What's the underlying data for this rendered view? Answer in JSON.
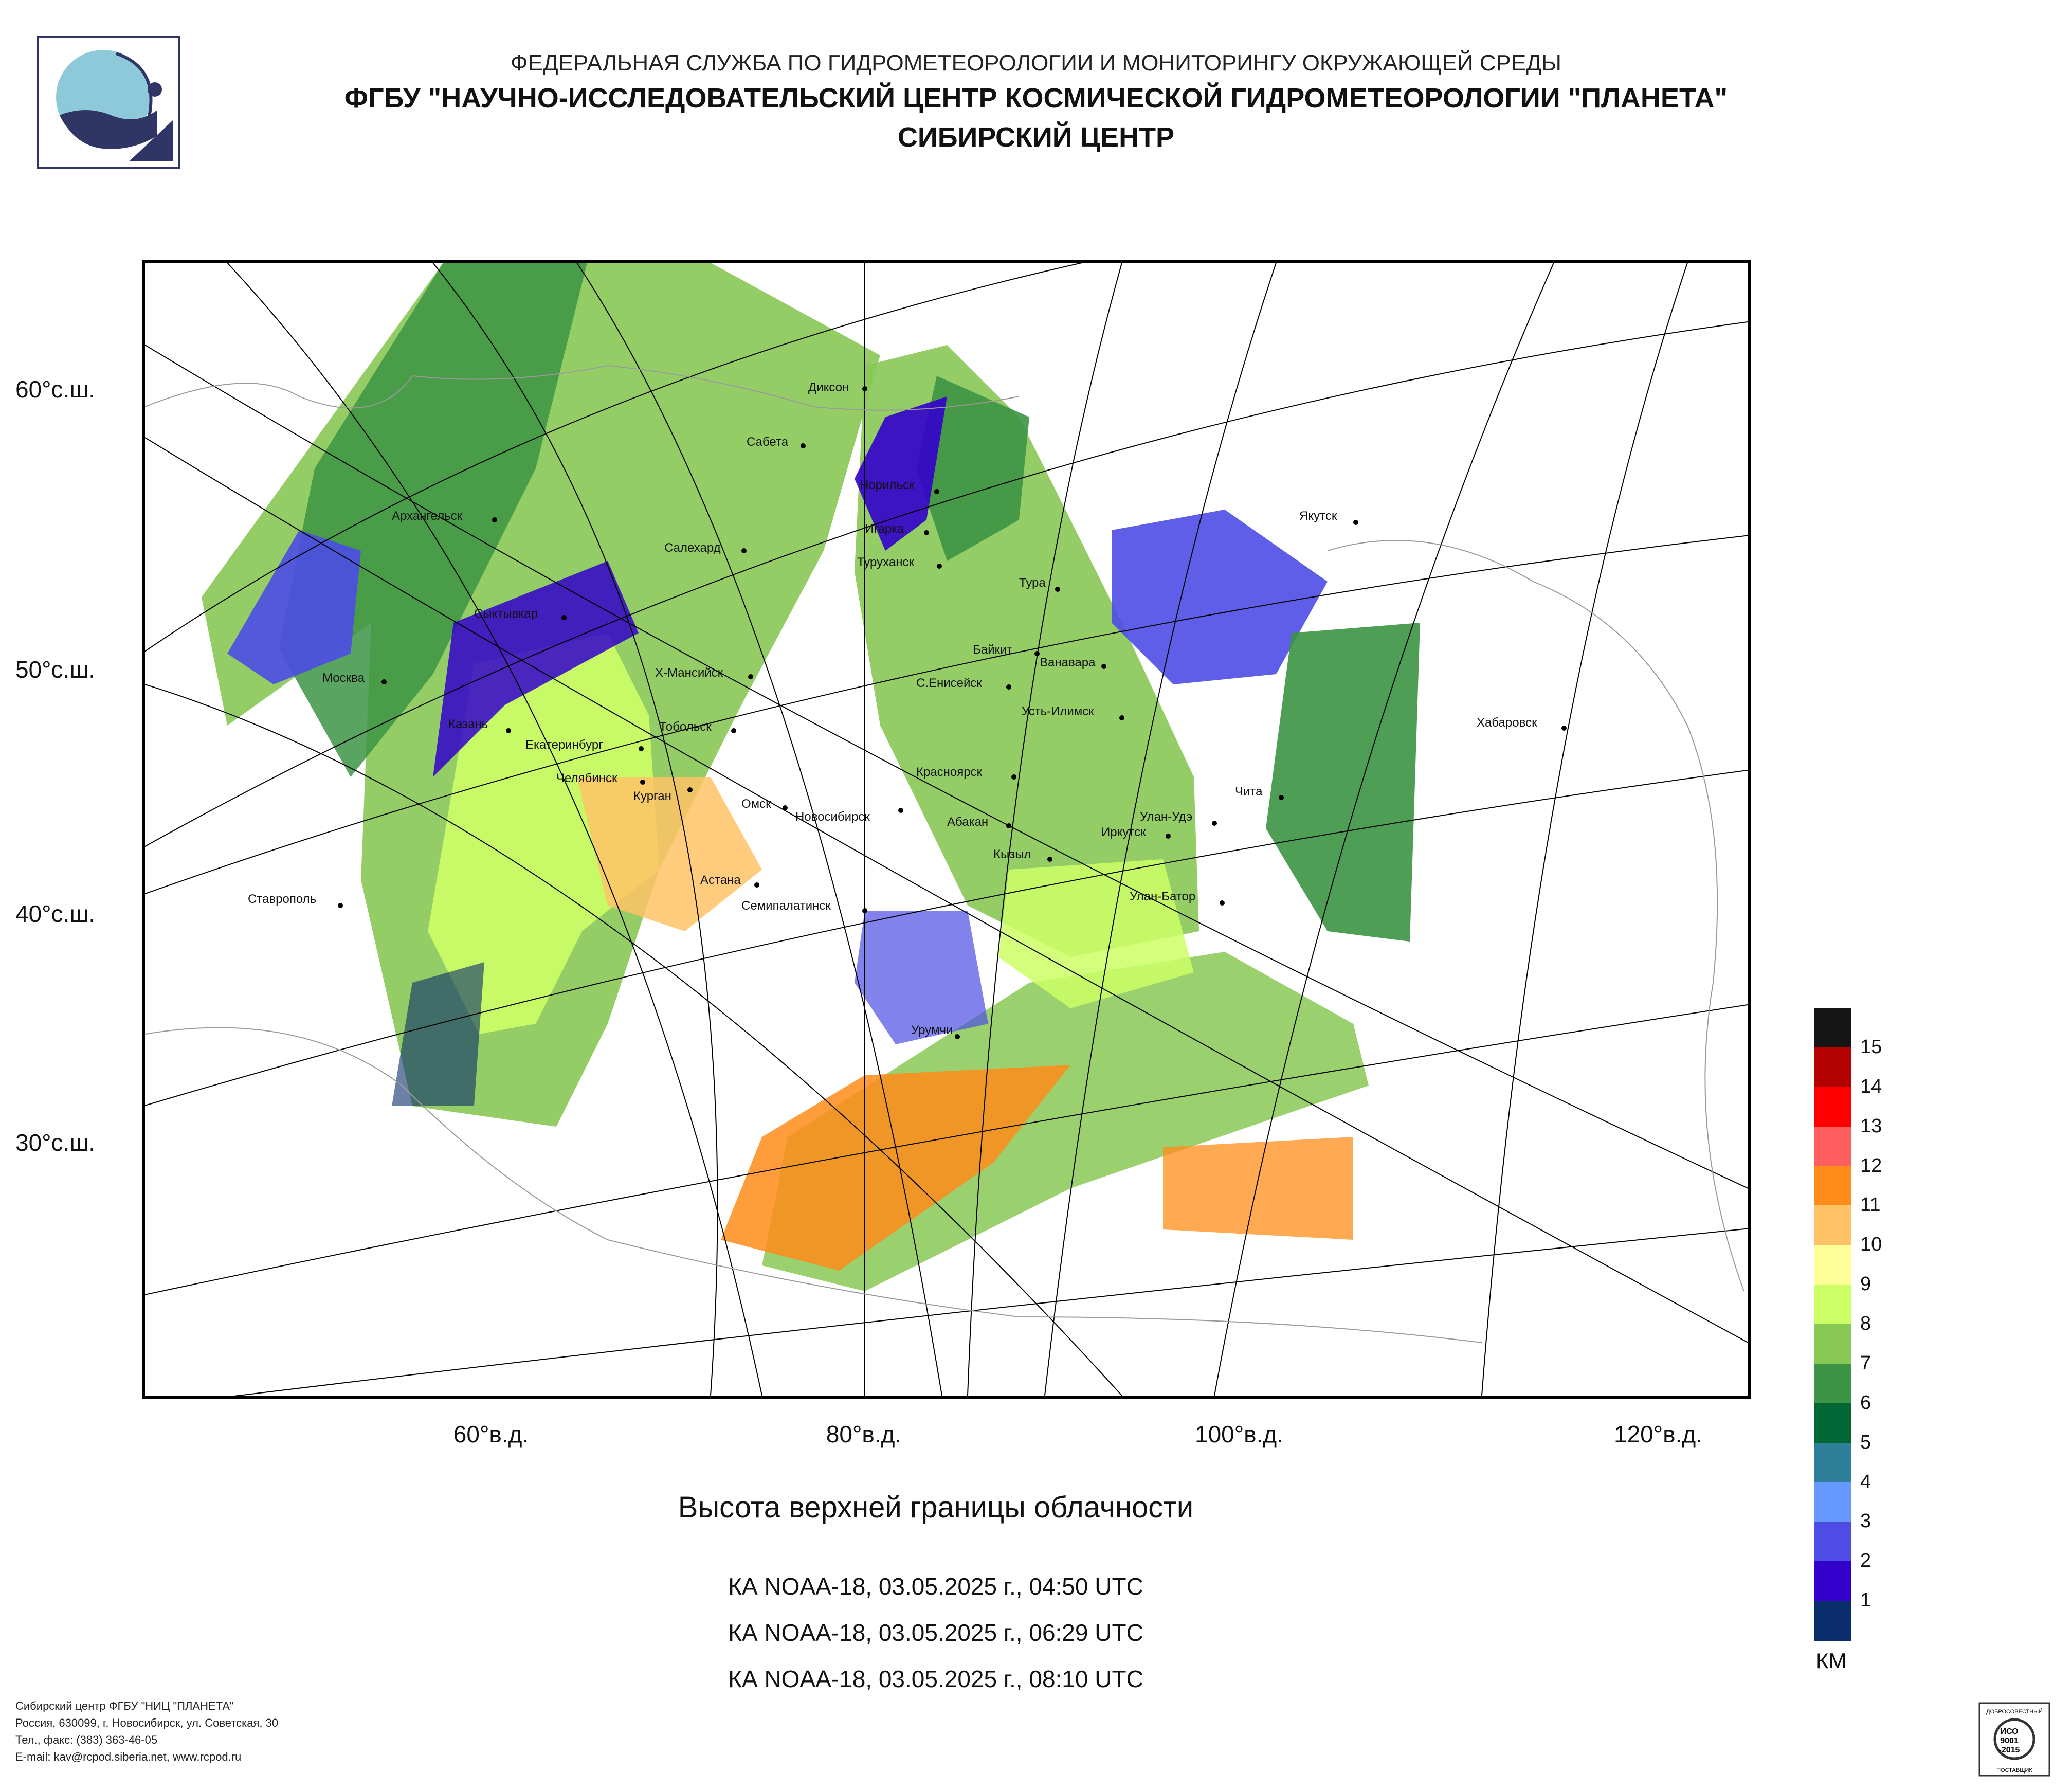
{
  "header": {
    "line1": "ФЕДЕРАЛЬНАЯ СЛУЖБА ПО ГИДРОМЕТЕОРОЛОГИИ И МОНИТОРИНГУ ОКРУЖАЮЩЕЙ СРЕДЫ",
    "line2": "ФГБУ \"НАУЧНО-ИССЛЕДОВАТЕЛЬСКИЙ ЦЕНТР КОСМИЧЕСКОЙ ГИДРОМЕТЕОРОЛОГИИ \"ПЛАНЕТА\"",
    "line3": "СИБИРСКИЙ ЦЕНТР"
  },
  "map": {
    "lat_labels": [
      "60°с.ш.",
      "50°с.ш.",
      "40°с.ш.",
      "30°с.ш."
    ],
    "lon_labels": [
      "60°в.д.",
      "80°в.д.",
      "100°в.д.",
      "120°в.д."
    ],
    "cities": [
      "Диксон",
      "Сабета",
      "Норильск",
      "Игарка",
      "Туруханск",
      "Салехард",
      "Архангельск",
      "Якутск",
      "Тура",
      "Сыктывкар",
      "Байкит",
      "Ванавара",
      "Х-Мансийск",
      "С.Енисейск",
      "Москва",
      "Усть-Илимск",
      "Хабаровск",
      "Казань",
      "Тобольск",
      "Екатеринбург",
      "Челябинск",
      "Красноярск",
      "Чита",
      "Курган",
      "Омск",
      "Новосибирск",
      "Абакан",
      "Улан-Удэ",
      "Иркутск",
      "Кызыл",
      "Астана",
      "Ставрополь",
      "Улан-Батор",
      "Семипалатинск",
      "Урумчи"
    ]
  },
  "title": "Высота верхней границы облачности",
  "passes": [
    "КА NOAA-18, 03.05.2025 г., 04:50 UTC",
    "КА NOAA-18, 03.05.2025 г., 06:29 UTC",
    "КА NOAA-18, 03.05.2025 г., 08:10 UTC"
  ],
  "legend": {
    "unit": "КМ",
    "labels": [
      "15",
      "14",
      "13",
      "12",
      "11",
      "10",
      "9",
      "8",
      "7",
      "6",
      "5",
      "4",
      "3",
      "2",
      "1"
    ],
    "colors": [
      "#151515",
      "#b30000",
      "#ff0000",
      "#ff5e5e",
      "#ff8c1a",
      "#ffc266",
      "#ffff99",
      "#ccff66",
      "#88c855",
      "#3c9444",
      "#006633",
      "#2e7f99",
      "#6699ff",
      "#4d4de6",
      "#3300cc",
      "#0a2d6b"
    ]
  },
  "footer": {
    "line1": "Сибирский центр ФГБУ \"НИЦ \"ПЛАНЕТА\"",
    "line2": "Россия, 630099, г. Новосибирск, ул. Советская, 30",
    "line3": "Тел., факс: (383) 363-46-05",
    "line4": "E-mail: kav@rcpod.siberia.net, www.rcpod.ru"
  },
  "certificate": {
    "top": "ДОБРОСОВЕСТНЫЙ",
    "line1": "ИСО",
    "line2": "9001",
    "line3": "-2015",
    "bottom": "ПОСТАВЩИК"
  }
}
